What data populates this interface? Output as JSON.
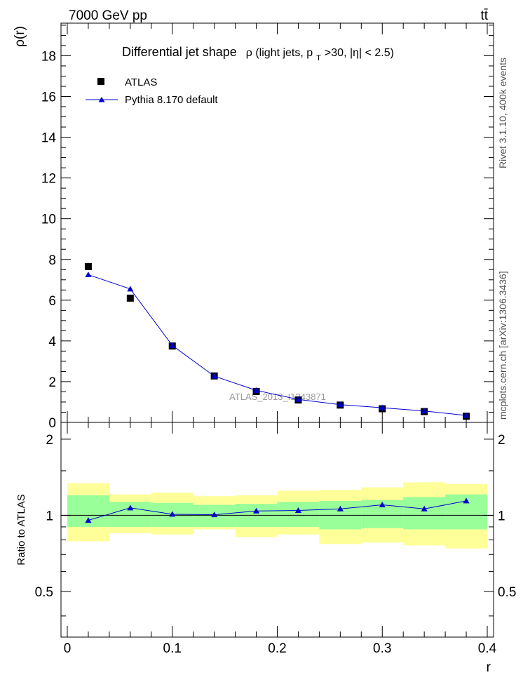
{
  "header": {
    "left": "7000 GeV pp",
    "right": "tt̄"
  },
  "side_labels": {
    "rivet": "Rivet 3.1.10,  400k events",
    "mcplots": "mcplots.cern.ch [arXiv:1306.3436]"
  },
  "chart_data": [
    {
      "type": "scatter",
      "panel": "main",
      "title_main": "Differential jet shape",
      "title_detail": "ρ (light jets, p",
      "title_sub": "T",
      "title_rest": ">30, |η| < 2.5)",
      "ylabel": "ρ(r)",
      "ylim": [
        0,
        19.6
      ],
      "yticks": [
        0,
        2,
        4,
        6,
        8,
        10,
        12,
        14,
        16,
        18
      ],
      "ytick_labels": [
        "0",
        "2",
        "4",
        "6",
        "8",
        "10",
        "12",
        "14",
        "16",
        "18"
      ],
      "xlim": [
        -0.006,
        0.406
      ],
      "x": [
        0.02,
        0.06,
        0.1,
        0.14,
        0.18,
        0.22,
        0.26,
        0.3,
        0.34,
        0.38
      ],
      "series": [
        {
          "name": "ATLAS",
          "marker": "square",
          "color": "#000000",
          "values": [
            7.65,
            6.1,
            3.75,
            2.28,
            1.52,
            1.1,
            0.85,
            0.67,
            0.53,
            0.3
          ]
        },
        {
          "name": "Pythia 8.170 default",
          "marker": "triangle",
          "color": "#0000cc",
          "values": [
            7.25,
            6.55,
            3.78,
            2.27,
            1.57,
            1.13,
            0.87,
            0.72,
            0.56,
            0.34
          ]
        }
      ],
      "watermark": "ATLAS_2013_I1243871"
    },
    {
      "type": "line",
      "panel": "ratio",
      "ylabel": "Ratio to ATLAS",
      "xlabel": "r",
      "ylim": [
        0.33,
        2.33
      ],
      "yticks": [
        0.5,
        1,
        2
      ],
      "ytick_labels": [
        "0.5",
        "1",
        "2"
      ],
      "xticks": [
        0,
        0.1,
        0.2,
        0.3,
        0.4
      ],
      "xtick_labels": [
        "0",
        "0.1",
        "0.2",
        "0.3",
        "0.4"
      ],
      "x": [
        0.02,
        0.06,
        0.1,
        0.14,
        0.18,
        0.22,
        0.26,
        0.3,
        0.34,
        0.38
      ],
      "bin_edges": [
        0,
        0.04,
        0.08,
        0.12,
        0.16,
        0.2,
        0.24,
        0.28,
        0.32,
        0.36,
        0.4
      ],
      "stat_band": {
        "color": "#99ff99",
        "lo": [
          0.9,
          0.9,
          0.9,
          0.9,
          0.9,
          0.9,
          0.88,
          0.89,
          0.88,
          0.88
        ],
        "hi": [
          1.2,
          1.13,
          1.12,
          1.1,
          1.11,
          1.13,
          1.14,
          1.15,
          1.18,
          1.21
        ]
      },
      "total_band": {
        "color": "#ffff99",
        "lo": [
          0.79,
          0.85,
          0.84,
          0.88,
          0.82,
          0.84,
          0.77,
          0.78,
          0.76,
          0.74
        ],
        "hi": [
          1.34,
          1.21,
          1.23,
          1.19,
          1.2,
          1.25,
          1.26,
          1.29,
          1.35,
          1.33
        ]
      },
      "series": [
        {
          "name": "Pythia 8.170 default",
          "color": "#0000cc",
          "values": [
            0.955,
            1.07,
            1.01,
            1.005,
            1.04,
            1.045,
            1.06,
            1.1,
            1.06,
            1.14
          ]
        }
      ]
    }
  ]
}
